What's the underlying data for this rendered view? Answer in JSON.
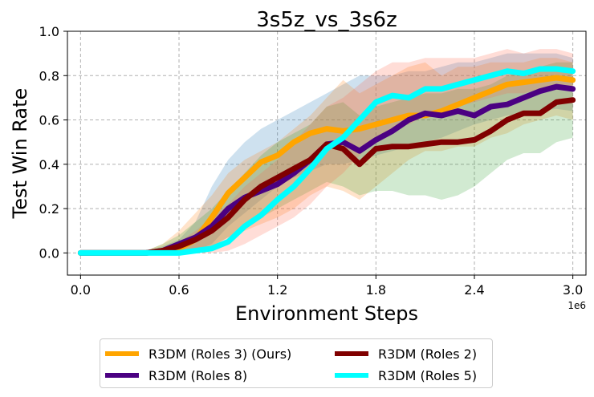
{
  "chart_data": {
    "type": "line",
    "title": "3s5z_vs_3s6z",
    "xlabel": "Environment Steps",
    "ylabel": "Test Win Rate",
    "x_offset_label": "1e6",
    "xlim": [
      -0.08,
      3.08
    ],
    "ylim": [
      -0.1,
      1.0
    ],
    "xticks": [
      0.0,
      0.6,
      1.2,
      1.8,
      2.4,
      3.0
    ],
    "xtick_labels": [
      "0.0",
      "0.6",
      "1.2",
      "1.8",
      "2.4",
      "3.0"
    ],
    "yticks": [
      0.0,
      0.2,
      0.4,
      0.6,
      0.8,
      1.0
    ],
    "ytick_labels": [
      "0.0",
      "0.2",
      "0.4",
      "0.6",
      "0.8",
      "1.0"
    ],
    "grid": true,
    "legend_position": "below",
    "x": [
      0.0,
      0.2,
      0.4,
      0.5,
      0.6,
      0.7,
      0.8,
      0.9,
      1.0,
      1.1,
      1.2,
      1.3,
      1.4,
      1.5,
      1.6,
      1.7,
      1.8,
      1.9,
      2.0,
      2.1,
      2.2,
      2.3,
      2.4,
      2.5,
      2.6,
      2.7,
      2.8,
      2.9,
      3.0
    ],
    "series": [
      {
        "name": "R3DM (Roles 3) (Ours)",
        "color": "#FFA500",
        "band_color": "#1f77b4",
        "values": [
          0.0,
          0.0,
          0.0,
          0.01,
          0.02,
          0.06,
          0.16,
          0.27,
          0.34,
          0.41,
          0.44,
          0.5,
          0.54,
          0.56,
          0.55,
          0.56,
          0.58,
          0.6,
          0.62,
          0.62,
          0.64,
          0.67,
          0.7,
          0.73,
          0.76,
          0.77,
          0.78,
          0.79,
          0.78
        ],
        "lower": [
          0.0,
          0.0,
          0.0,
          0.0,
          0.0,
          0.01,
          0.04,
          0.12,
          0.18,
          0.24,
          0.3,
          0.34,
          0.37,
          0.4,
          0.4,
          0.42,
          0.44,
          0.46,
          0.48,
          0.5,
          0.52,
          0.55,
          0.58,
          0.6,
          0.62,
          0.63,
          0.64,
          0.65,
          0.64
        ],
        "upper": [
          0.0,
          0.0,
          0.01,
          0.03,
          0.06,
          0.14,
          0.3,
          0.42,
          0.5,
          0.56,
          0.6,
          0.64,
          0.68,
          0.72,
          0.76,
          0.8,
          0.8,
          0.8,
          0.82,
          0.82,
          0.84,
          0.86,
          0.86,
          0.88,
          0.9,
          0.9,
          0.9,
          0.9,
          0.88
        ]
      },
      {
        "name": "R3DM (Roles 8)",
        "color": "#4B0082",
        "band_color": "#ff7f0e",
        "values": [
          0.0,
          0.0,
          0.0,
          0.01,
          0.04,
          0.07,
          0.12,
          0.2,
          0.25,
          0.28,
          0.31,
          0.36,
          0.42,
          0.49,
          0.5,
          0.46,
          0.51,
          0.55,
          0.6,
          0.63,
          0.62,
          0.64,
          0.62,
          0.66,
          0.67,
          0.7,
          0.73,
          0.75,
          0.74
        ],
        "lower": [
          0.0,
          0.0,
          0.0,
          0.0,
          0.0,
          0.0,
          0.03,
          0.07,
          0.1,
          0.13,
          0.16,
          0.2,
          0.26,
          0.3,
          0.28,
          0.24,
          0.3,
          0.36,
          0.42,
          0.46,
          0.46,
          0.48,
          0.48,
          0.52,
          0.54,
          0.58,
          0.6,
          0.62,
          0.6
        ],
        "upper": [
          0.0,
          0.0,
          0.01,
          0.04,
          0.1,
          0.18,
          0.26,
          0.36,
          0.42,
          0.46,
          0.5,
          0.56,
          0.62,
          0.7,
          0.78,
          0.72,
          0.76,
          0.8,
          0.84,
          0.86,
          0.8,
          0.84,
          0.84,
          0.86,
          0.86,
          0.86,
          0.88,
          0.88,
          0.86
        ]
      },
      {
        "name": "R3DM (Roles 2)",
        "color": "#800000",
        "band_color": "#2ca02c",
        "values": [
          0.0,
          0.0,
          0.0,
          0.01,
          0.03,
          0.06,
          0.1,
          0.16,
          0.24,
          0.3,
          0.34,
          0.38,
          0.42,
          0.49,
          0.47,
          0.4,
          0.47,
          0.48,
          0.48,
          0.49,
          0.5,
          0.5,
          0.51,
          0.55,
          0.6,
          0.63,
          0.63,
          0.68,
          0.69
        ],
        "lower": [
          0.0,
          0.0,
          0.0,
          0.0,
          0.0,
          0.01,
          0.03,
          0.07,
          0.12,
          0.16,
          0.2,
          0.24,
          0.28,
          0.32,
          0.3,
          0.26,
          0.28,
          0.28,
          0.26,
          0.26,
          0.24,
          0.26,
          0.3,
          0.36,
          0.42,
          0.45,
          0.45,
          0.5,
          0.52
        ],
        "upper": [
          0.0,
          0.0,
          0.01,
          0.04,
          0.08,
          0.14,
          0.2,
          0.28,
          0.36,
          0.44,
          0.5,
          0.54,
          0.58,
          0.66,
          0.68,
          0.62,
          0.66,
          0.68,
          0.7,
          0.72,
          0.72,
          0.74,
          0.74,
          0.76,
          0.8,
          0.82,
          0.84,
          0.86,
          0.86
        ]
      },
      {
        "name": "R3DM (Roles 5)",
        "color": "#00FFFF",
        "band_color": "#ff6347",
        "values": [
          0.0,
          0.0,
          0.0,
          0.0,
          0.0,
          0.01,
          0.02,
          0.05,
          0.12,
          0.17,
          0.24,
          0.3,
          0.38,
          0.47,
          0.52,
          0.6,
          0.68,
          0.71,
          0.7,
          0.74,
          0.74,
          0.76,
          0.78,
          0.8,
          0.82,
          0.81,
          0.83,
          0.83,
          0.82
        ],
        "lower": [
          0.0,
          0.0,
          0.0,
          0.0,
          0.0,
          0.0,
          0.0,
          0.01,
          0.04,
          0.08,
          0.12,
          0.16,
          0.22,
          0.3,
          0.36,
          0.44,
          0.52,
          0.56,
          0.58,
          0.62,
          0.64,
          0.66,
          0.68,
          0.7,
          0.72,
          0.72,
          0.74,
          0.74,
          0.73
        ],
        "upper": [
          0.0,
          0.0,
          0.01,
          0.02,
          0.05,
          0.1,
          0.16,
          0.22,
          0.3,
          0.36,
          0.42,
          0.5,
          0.58,
          0.66,
          0.7,
          0.76,
          0.82,
          0.86,
          0.86,
          0.88,
          0.88,
          0.88,
          0.88,
          0.9,
          0.92,
          0.9,
          0.92,
          0.92,
          0.9
        ]
      }
    ]
  },
  "legend": {
    "items": [
      {
        "label": "R3DM (Roles 3) (Ours)",
        "color": "#FFA500"
      },
      {
        "label": "R3DM (Roles 8)",
        "color": "#4B0082"
      },
      {
        "label": "R3DM (Roles 2)",
        "color": "#800000"
      },
      {
        "label": "R3DM (Roles 5)",
        "color": "#00FFFF"
      }
    ]
  }
}
